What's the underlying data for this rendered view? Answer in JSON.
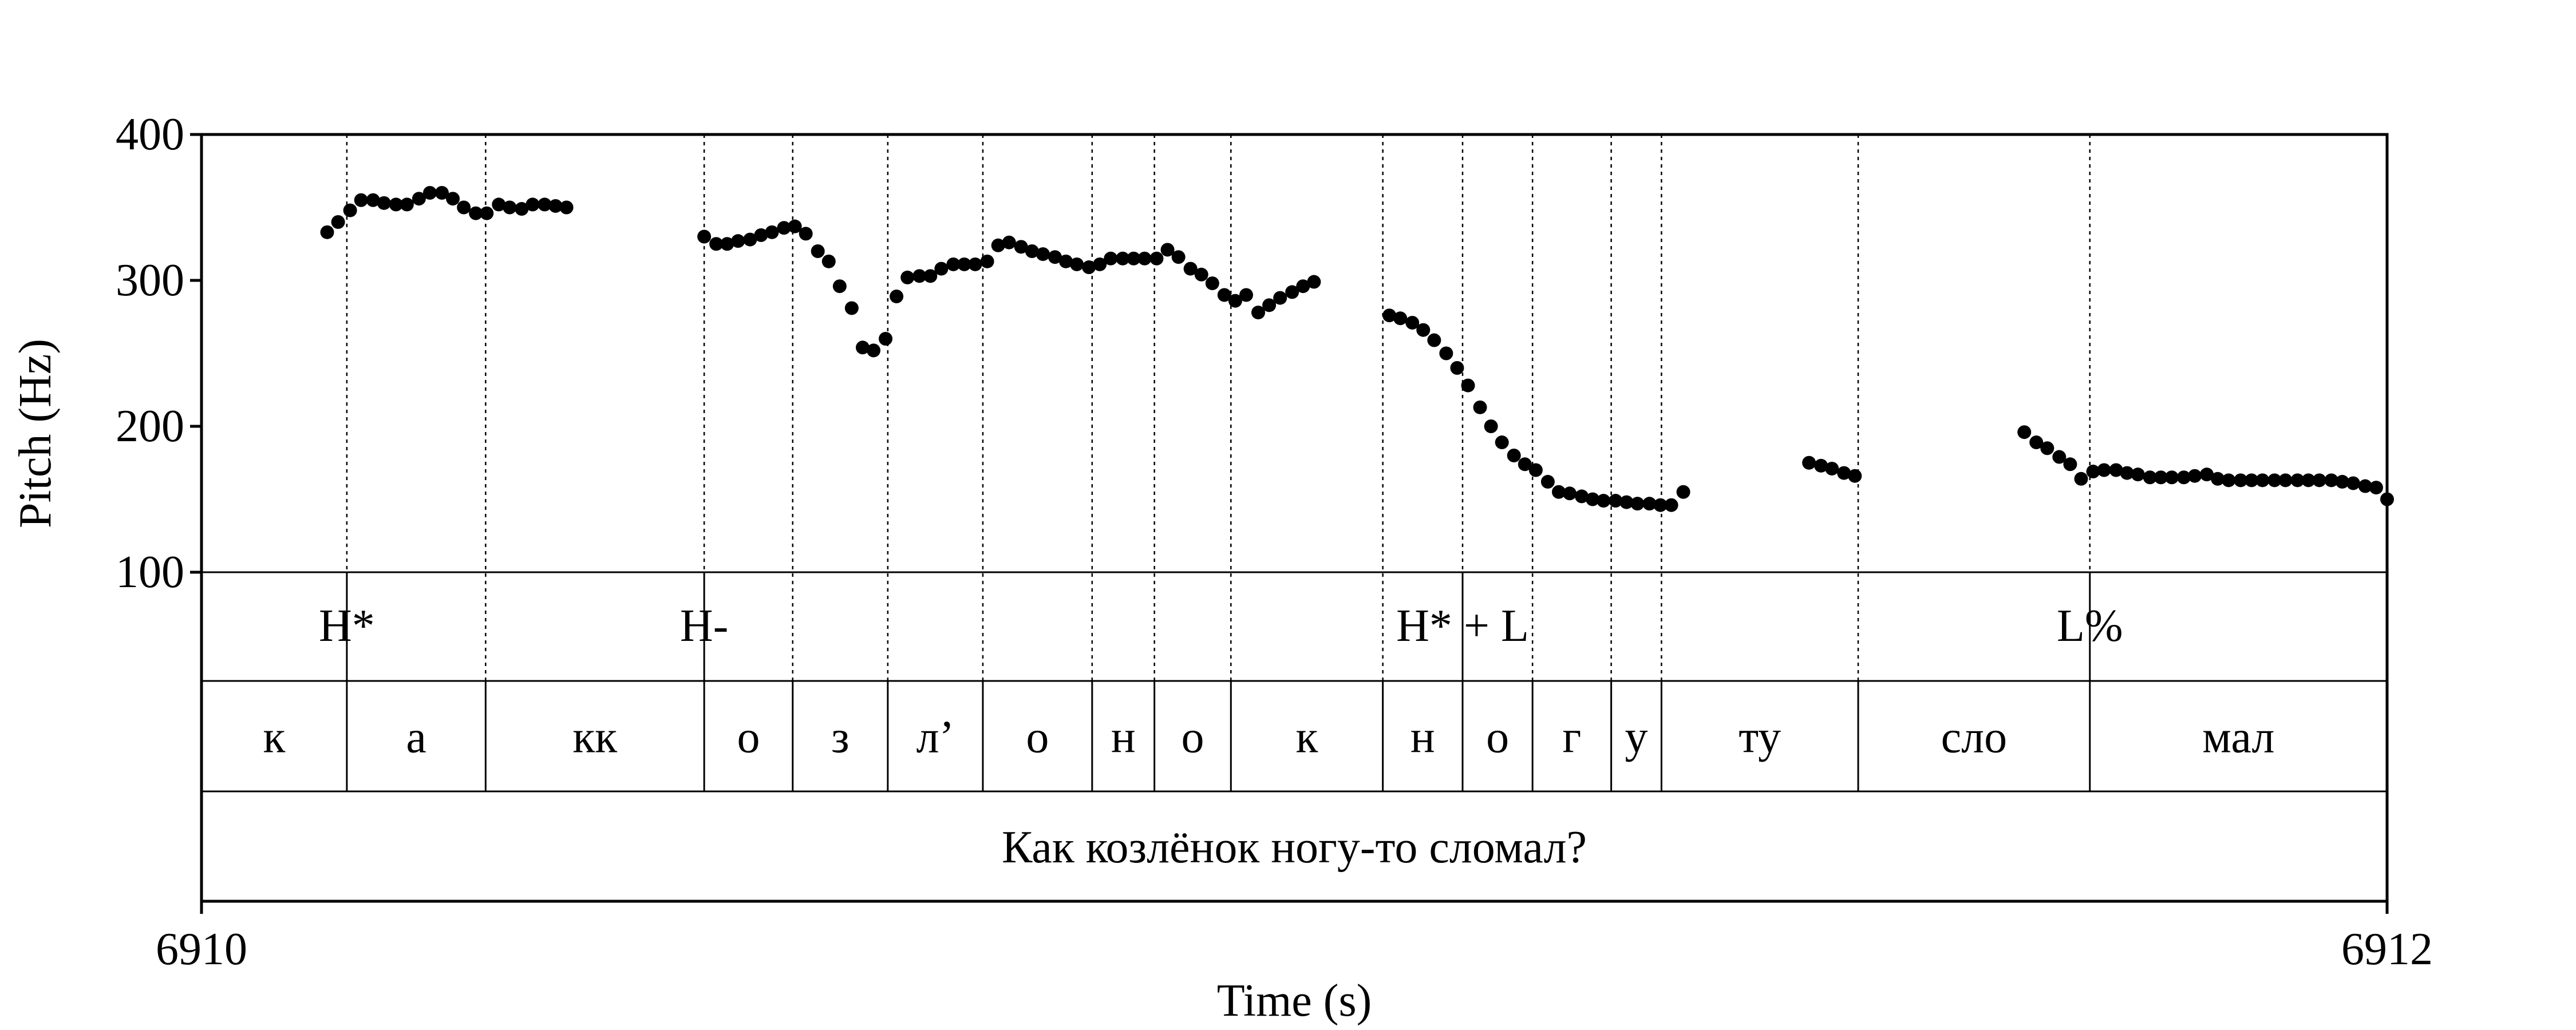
{
  "chart_data": {
    "type": "scatter",
    "title": "",
    "xlabel": "Time (s)",
    "ylabel": "Pitch (Hz)",
    "xlim": [
      6910,
      6912
    ],
    "ylim": [
      100,
      400
    ],
    "x_ticks": [
      6910,
      6912
    ],
    "y_ticks": [
      100,
      200,
      300,
      400
    ],
    "grid": false,
    "series": [
      {
        "points": [
          [
            6910.115,
            333
          ],
          [
            6910.125,
            340
          ],
          [
            6910.136,
            348
          ],
          [
            6910.146,
            355
          ],
          [
            6910.157,
            355
          ],
          [
            6910.167,
            353
          ],
          [
            6910.178,
            352
          ],
          [
            6910.188,
            352
          ],
          [
            6910.199,
            356
          ],
          [
            6910.209,
            360
          ],
          [
            6910.22,
            360
          ],
          [
            6910.23,
            356
          ],
          [
            6910.24,
            350
          ],
          [
            6910.251,
            346
          ],
          [
            6910.261,
            346
          ],
          [
            6910.272,
            352
          ],
          [
            6910.282,
            350
          ],
          [
            6910.293,
            349
          ],
          [
            6910.303,
            352
          ],
          [
            6910.314,
            352
          ],
          [
            6910.324,
            351
          ],
          [
            6910.334,
            350
          ],
          [
            6910.46,
            330
          ],
          [
            6910.471,
            325
          ],
          [
            6910.481,
            325
          ],
          [
            6910.491,
            327
          ],
          [
            6910.502,
            328
          ],
          [
            6910.512,
            331
          ],
          [
            6910.522,
            333
          ],
          [
            6910.533,
            336
          ],
          [
            6910.543,
            337
          ],
          [
            6910.553,
            332
          ],
          [
            6910.564,
            320
          ],
          [
            6910.574,
            313
          ],
          [
            6910.584,
            296
          ],
          [
            6910.595,
            281
          ],
          [
            6910.605,
            254
          ],
          [
            6910.615,
            252
          ],
          [
            6910.626,
            260
          ],
          [
            6910.636,
            289
          ],
          [
            6910.646,
            302
          ],
          [
            6910.657,
            303
          ],
          [
            6910.667,
            303
          ],
          [
            6910.677,
            308
          ],
          [
            6910.688,
            311
          ],
          [
            6910.698,
            311
          ],
          [
            6910.708,
            311
          ],
          [
            6910.719,
            313
          ],
          [
            6910.729,
            324
          ],
          [
            6910.739,
            326
          ],
          [
            6910.75,
            323
          ],
          [
            6910.76,
            320
          ],
          [
            6910.77,
            318
          ],
          [
            6910.781,
            316
          ],
          [
            6910.791,
            313
          ],
          [
            6910.801,
            311
          ],
          [
            6910.812,
            309
          ],
          [
            6910.822,
            311
          ],
          [
            6910.832,
            315
          ],
          [
            6910.843,
            315
          ],
          [
            6910.853,
            315
          ],
          [
            6910.863,
            315
          ],
          [
            6910.874,
            315
          ],
          [
            6910.884,
            321
          ],
          [
            6910.894,
            316
          ],
          [
            6910.905,
            308
          ],
          [
            6910.915,
            304
          ],
          [
            6910.925,
            298
          ],
          [
            6910.936,
            290
          ],
          [
            6910.946,
            286
          ],
          [
            6910.956,
            290
          ],
          [
            6910.967,
            278
          ],
          [
            6910.977,
            283
          ],
          [
            6910.987,
            288
          ],
          [
            6910.998,
            292
          ],
          [
            6911.008,
            296
          ],
          [
            6911.018,
            299
          ],
          [
            6911.087,
            276
          ],
          [
            6911.097,
            274
          ],
          [
            6911.108,
            271
          ],
          [
            6911.118,
            266
          ],
          [
            6911.128,
            259
          ],
          [
            6911.139,
            250
          ],
          [
            6911.149,
            240
          ],
          [
            6911.159,
            228
          ],
          [
            6911.17,
            213
          ],
          [
            6911.18,
            200
          ],
          [
            6911.19,
            189
          ],
          [
            6911.201,
            180
          ],
          [
            6911.211,
            174
          ],
          [
            6911.221,
            170
          ],
          [
            6911.232,
            162
          ],
          [
            6911.242,
            155
          ],
          [
            6911.252,
            154
          ],
          [
            6911.263,
            152
          ],
          [
            6911.273,
            150
          ],
          [
            6911.283,
            149
          ],
          [
            6911.294,
            149
          ],
          [
            6911.304,
            148
          ],
          [
            6911.314,
            147
          ],
          [
            6911.325,
            147
          ],
          [
            6911.335,
            146
          ],
          [
            6911.345,
            146
          ],
          [
            6911.356,
            155
          ],
          [
            6911.471,
            175
          ],
          [
            6911.482,
            173
          ],
          [
            6911.492,
            171
          ],
          [
            6911.503,
            168
          ],
          [
            6911.513,
            166
          ],
          [
            6911.668,
            196
          ],
          [
            6911.679,
            189
          ],
          [
            6911.689,
            185
          ],
          [
            6911.7,
            179
          ],
          [
            6911.71,
            174
          ],
          [
            6911.72,
            164
          ],
          [
            6911.731,
            169
          ],
          [
            6911.741,
            170
          ],
          [
            6911.752,
            170
          ],
          [
            6911.762,
            168
          ],
          [
            6911.772,
            167
          ],
          [
            6911.783,
            165
          ],
          [
            6911.793,
            165
          ],
          [
            6911.803,
            165
          ],
          [
            6911.814,
            165
          ],
          [
            6911.824,
            166
          ],
          [
            6911.835,
            167
          ],
          [
            6911.845,
            164
          ],
          [
            6911.855,
            163
          ],
          [
            6911.866,
            163
          ],
          [
            6911.876,
            163
          ],
          [
            6911.886,
            163
          ],
          [
            6911.897,
            163
          ],
          [
            6911.907,
            163
          ],
          [
            6911.918,
            163
          ],
          [
            6911.928,
            163
          ],
          [
            6911.938,
            163
          ],
          [
            6911.949,
            163
          ],
          [
            6911.959,
            162
          ],
          [
            6911.969,
            161
          ],
          [
            6911.98,
            159
          ],
          [
            6911.99,
            158
          ],
          [
            6912.0,
            150
          ]
        ]
      }
    ],
    "tones": [
      {
        "time": 6910.133,
        "label": "H*"
      },
      {
        "time": 6910.46,
        "label": "H-"
      },
      {
        "time": 6911.154,
        "label": "H* + L"
      },
      {
        "time": 6911.728,
        "label": "L%"
      }
    ],
    "segment_boundaries": [
      6910.133,
      6910.26,
      6910.46,
      6910.541,
      6910.628,
      6910.715,
      6910.815,
      6910.872,
      6910.942,
      6911.081,
      6911.154,
      6911.218,
      6911.29,
      6911.336,
      6911.516,
      6911.728
    ],
    "segments": [
      {
        "start": 6910.0,
        "end": 6910.133,
        "label": "к"
      },
      {
        "start": 6910.133,
        "end": 6910.26,
        "label": "а"
      },
      {
        "start": 6910.26,
        "end": 6910.46,
        "label": "кк"
      },
      {
        "start": 6910.46,
        "end": 6910.541,
        "label": "о"
      },
      {
        "start": 6910.541,
        "end": 6910.628,
        "label": "з"
      },
      {
        "start": 6910.628,
        "end": 6910.715,
        "label": "л’"
      },
      {
        "start": 6910.715,
        "end": 6910.815,
        "label": "о"
      },
      {
        "start": 6910.815,
        "end": 6910.872,
        "label": "н"
      },
      {
        "start": 6910.872,
        "end": 6910.942,
        "label": "о"
      },
      {
        "start": 6910.942,
        "end": 6911.081,
        "label": "к"
      },
      {
        "start": 6911.081,
        "end": 6911.154,
        "label": "н"
      },
      {
        "start": 6911.154,
        "end": 6911.218,
        "label": "о"
      },
      {
        "start": 6911.218,
        "end": 6911.29,
        "label": "г"
      },
      {
        "start": 6911.29,
        "end": 6911.336,
        "label": "у"
      },
      {
        "start": 6911.336,
        "end": 6911.516,
        "label": "ту"
      },
      {
        "start": 6911.516,
        "end": 6911.728,
        "label": "сло"
      },
      {
        "start": 6911.728,
        "end": 6912.0,
        "label": "мал"
      }
    ],
    "sentence": "Как козлёнок ногу-то сломал?"
  }
}
